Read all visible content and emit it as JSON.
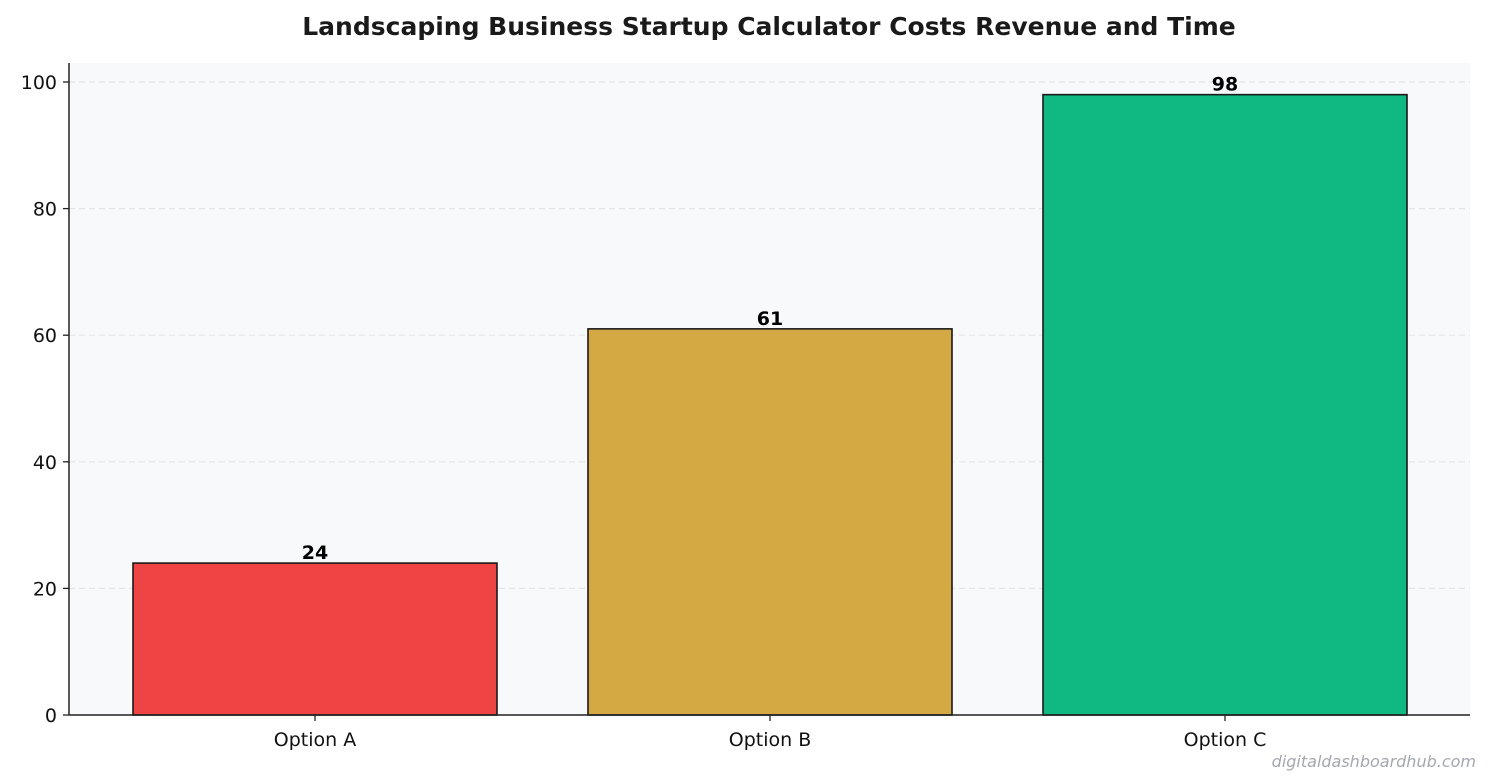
{
  "chart_data": {
    "type": "bar",
    "title": "Landscaping Business Startup Calculator  Costs  Revenue  and Time",
    "xlabel": "",
    "ylabel": "",
    "categories": [
      "Option A",
      "Option B",
      "Option C"
    ],
    "values": [
      24,
      61,
      98
    ],
    "data_labels": [
      "24",
      "61",
      "98"
    ],
    "ylim": [
      0,
      103
    ],
    "yticks": [
      0,
      20,
      40,
      60,
      80,
      100
    ],
    "ytick_labels": [
      "0",
      "20",
      "40",
      "60",
      "80",
      "100"
    ],
    "grid": "y-dashed",
    "legend": "none",
    "colors": {
      "bars": [
        "#ef4444",
        "#d4a843",
        "#10b981"
      ],
      "plot_background": "#f8f9fb",
      "grid": "#e2e5e9",
      "bar_edge": "#1a1a1a",
      "axis": "#222222"
    }
  },
  "watermark": "digitaldashboardhub.com"
}
